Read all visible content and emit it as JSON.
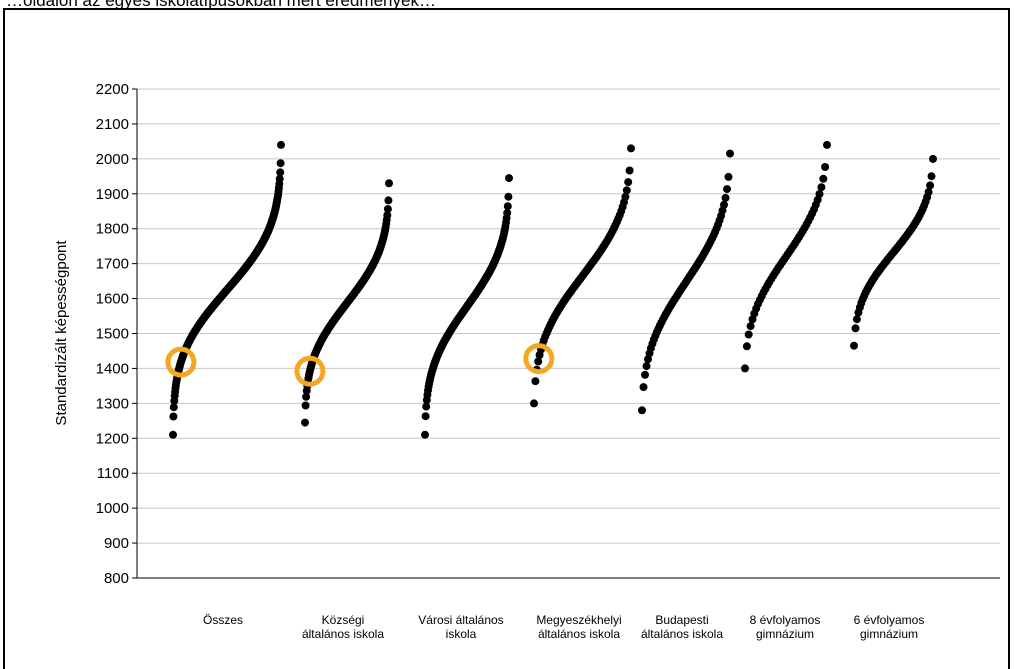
{
  "caption": "…oldalon az egyes iskolatípusokban mért eredmények…",
  "chart_data": {
    "type": "scatter",
    "title": "",
    "xlabel": "",
    "ylabel": "Standardizált képességpont",
    "ylim": [
      800,
      2200
    ],
    "yticks": [
      800,
      900,
      1000,
      1100,
      1200,
      1300,
      1400,
      1500,
      1600,
      1700,
      1800,
      1900,
      2000,
      2100,
      2200
    ],
    "grid": true,
    "legend": "none",
    "categories": [
      [
        "Összes"
      ],
      [
        "Községi",
        "általános iskola"
      ],
      [
        "Városi általános",
        "iskola"
      ],
      [
        "Megyeszékhelyi",
        "általános iskola"
      ],
      [
        "Budapesti",
        "általános iskola"
      ],
      [
        "8 évfolyamos",
        "gimnázium"
      ],
      [
        "6 évfolyamos",
        "gimnázium"
      ]
    ],
    "series": [
      {
        "category": "Összes",
        "count": 260,
        "min": 1210,
        "max": 2040,
        "highlight": 1418
      },
      {
        "category": "Községi általános iskola",
        "count": 150,
        "min": 1245,
        "max": 1930,
        "highlight": 1392
      },
      {
        "category": "Városi általános iskola",
        "count": 140,
        "min": 1210,
        "max": 1945,
        "highlight": null
      },
      {
        "category": "Megyeszékhelyi általános iskola",
        "count": 70,
        "min": 1300,
        "max": 2030,
        "highlight": 1428
      },
      {
        "category": "Budapesti általános iskola",
        "count": 60,
        "min": 1280,
        "max": 2015,
        "highlight": null
      },
      {
        "category": "8 évfolyamos gimnázium",
        "count": 45,
        "min": 1400,
        "max": 2040,
        "highlight": null
      },
      {
        "category": "6 évfolyamos gimnázium",
        "count": 55,
        "min": 1465,
        "max": 2000,
        "highlight": null
      }
    ],
    "colors": {
      "points": "#000000",
      "highlight_ring": "#f5a623",
      "grid": "#c8c8c8",
      "axis": "#000000"
    }
  }
}
